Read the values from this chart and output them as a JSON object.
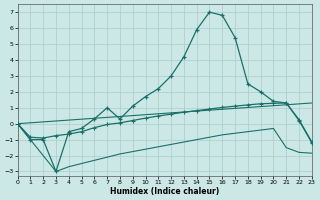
{
  "xlabel": "Humidex (Indice chaleur)",
  "background_color": "#cce8e6",
  "grid_color": "#aacccc",
  "line_color": "#1a7068",
  "xlim": [
    0,
    23
  ],
  "ylim": [
    -3.3,
    7.5
  ],
  "x_ticks": [
    0,
    1,
    2,
    3,
    4,
    5,
    6,
    7,
    8,
    9,
    10,
    11,
    12,
    13,
    14,
    15,
    16,
    17,
    18,
    19,
    20,
    21,
    22,
    23
  ],
  "y_ticks": [
    -3,
    -2,
    -1,
    0,
    1,
    2,
    3,
    4,
    5,
    6,
    7
  ],
  "curve1_x": [
    0,
    1,
    2,
    3,
    4,
    5,
    6,
    7,
    8,
    9,
    10,
    11,
    12,
    13,
    14,
    15,
    16,
    17,
    18,
    19,
    20,
    21,
    22,
    23
  ],
  "curve1_y": [
    0,
    -1,
    -1,
    -3,
    -0.5,
    -0.3,
    0.3,
    1.0,
    0.3,
    1.1,
    1.7,
    2.2,
    3.0,
    4.2,
    5.9,
    7.0,
    6.8,
    5.4,
    2.5,
    2.0,
    1.4,
    1.3,
    0.2,
    -1.2
  ],
  "curve2_x": [
    0,
    1,
    2,
    3,
    4,
    5,
    6,
    7,
    8,
    9,
    10,
    11,
    12,
    13,
    14,
    15,
    16,
    17,
    18,
    19,
    20,
    21,
    22,
    23
  ],
  "curve2_y": [
    0,
    -0.85,
    -0.9,
    -0.75,
    -0.65,
    -0.5,
    -0.25,
    -0.05,
    0.05,
    0.2,
    0.35,
    0.48,
    0.6,
    0.72,
    0.82,
    0.92,
    1.02,
    1.1,
    1.18,
    1.25,
    1.28,
    1.3,
    0.25,
    -1.15
  ],
  "curve3_x": [
    0,
    23
  ],
  "curve3_y": [
    0,
    1.3
  ],
  "curve4_x": [
    0,
    3,
    4,
    5,
    6,
    7,
    8,
    9,
    10,
    11,
    12,
    13,
    14,
    15,
    16,
    17,
    18,
    19,
    20,
    21,
    22,
    23
  ],
  "curve4_y": [
    0,
    -3,
    -2.7,
    -2.5,
    -2.3,
    -2.1,
    -1.9,
    -1.75,
    -1.6,
    -1.45,
    -1.3,
    -1.15,
    -1.0,
    -0.85,
    -0.7,
    -0.6,
    -0.5,
    -0.4,
    -0.3,
    -1.5,
    -1.8,
    -1.85
  ]
}
